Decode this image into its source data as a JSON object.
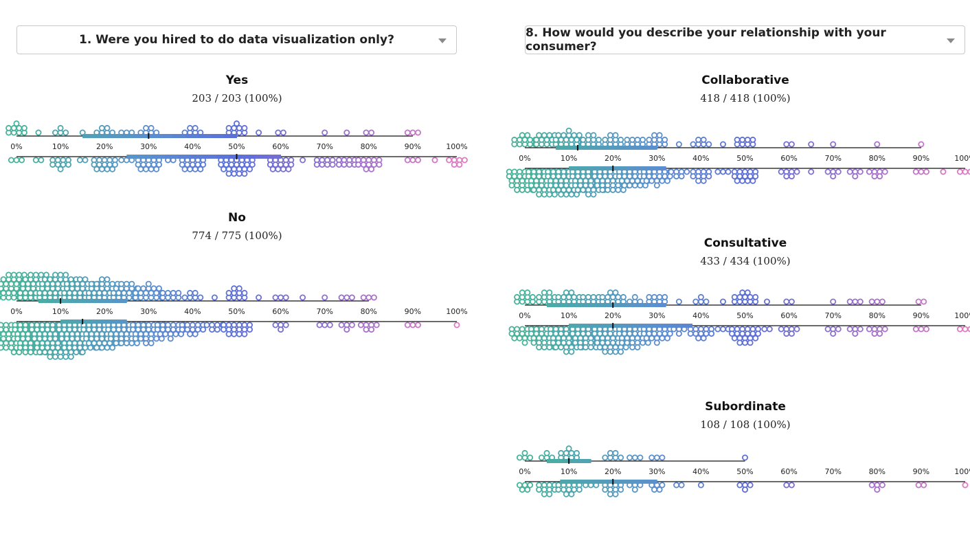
{
  "left": {
    "dropdown": {
      "label": "1. Were you hired to do data visualization only?",
      "icon": "chevron-down-icon"
    },
    "groups": [
      {
        "title": "Yes",
        "count": "203 / 203 (100%)"
      },
      {
        "title": "No",
        "count": "774 / 775 (100%)"
      }
    ]
  },
  "right": {
    "dropdown": {
      "label": "8. How would you describe your relationship with your consumer?",
      "icon": "chevron-down-icon"
    },
    "groups": [
      {
        "title": "Collaborative",
        "count": "418 / 418 (100%)"
      },
      {
        "title": "Consultative",
        "count": "433 / 434 (100%)"
      },
      {
        "title": "Subordinate",
        "count": "108 / 108 (100%)"
      }
    ]
  },
  "colors": {
    "start": "#46b39a",
    "mid": "#5b8fd0",
    "blue": "#5b6fd9",
    "purple": "#9b6fd0",
    "end": "#e079c2",
    "axis": "#111111",
    "dot_fill": "#ffffff"
  },
  "chart_data": [
    {
      "type": "scatter",
      "title": "Yes",
      "subtitle": "203 / 203 (100%)",
      "x_ticks": [
        "0%",
        "10%",
        "20%",
        "30%",
        "40%",
        "50%",
        "60%",
        "70%",
        "80%",
        "90%",
        "100%"
      ],
      "xlim": [
        0,
        100
      ],
      "top": {
        "x_range": [
          0,
          90
        ],
        "iqr": [
          15,
          50
        ],
        "median": 30,
        "bins": [
          [
            0,
            9
          ],
          [
            5,
            1
          ],
          [
            10,
            4
          ],
          [
            15,
            1
          ],
          [
            20,
            6
          ],
          [
            25,
            3
          ],
          [
            30,
            6
          ],
          [
            40,
            6
          ],
          [
            50,
            9
          ],
          [
            55,
            1
          ],
          [
            60,
            2
          ],
          [
            70,
            1
          ],
          [
            75,
            1
          ],
          [
            80,
            2
          ],
          [
            90,
            3
          ]
        ]
      },
      "bottom": {
        "x_range": [
          0,
          100
        ],
        "iqr": [
          25,
          60
        ],
        "median": 50,
        "bins": [
          [
            0,
            3
          ],
          [
            5,
            2
          ],
          [
            10,
            9
          ],
          [
            15,
            2
          ],
          [
            20,
            14
          ],
          [
            25,
            3
          ],
          [
            30,
            14
          ],
          [
            35,
            2
          ],
          [
            40,
            14
          ],
          [
            50,
            24
          ],
          [
            60,
            14
          ],
          [
            65,
            1
          ],
          [
            70,
            8
          ],
          [
            75,
            8
          ],
          [
            80,
            12
          ],
          [
            90,
            3
          ],
          [
            95,
            1
          ],
          [
            100,
            6
          ]
        ]
      }
    },
    {
      "type": "scatter",
      "title": "No",
      "subtitle": "774 / 775 (100%)",
      "x_ticks": [
        "0%",
        "10%",
        "20%",
        "30%",
        "40%",
        "50%",
        "60%",
        "70%",
        "80%",
        "90%",
        "100%"
      ],
      "xlim": [
        0,
        100
      ],
      "top": {
        "x_range": [
          0,
          80
        ],
        "iqr": [
          5,
          25
        ],
        "median": 10,
        "bins": [
          [
            0,
            40
          ],
          [
            5,
            40
          ],
          [
            10,
            44
          ],
          [
            15,
            32
          ],
          [
            20,
            28
          ],
          [
            25,
            20
          ],
          [
            30,
            18
          ],
          [
            35,
            8
          ],
          [
            40,
            6
          ],
          [
            45,
            1
          ],
          [
            50,
            10
          ],
          [
            55,
            1
          ],
          [
            60,
            3
          ],
          [
            65,
            1
          ],
          [
            70,
            1
          ],
          [
            75,
            3
          ],
          [
            80,
            3
          ]
        ]
      },
      "bottom": {
        "x_range": [
          0,
          100
        ],
        "iqr": [
          10,
          25
        ],
        "median": 15,
        "bins": [
          [
            0,
            50
          ],
          [
            5,
            60
          ],
          [
            10,
            80
          ],
          [
            15,
            55
          ],
          [
            20,
            45
          ],
          [
            25,
            35
          ],
          [
            30,
            28
          ],
          [
            35,
            18
          ],
          [
            40,
            12
          ],
          [
            45,
            6
          ],
          [
            50,
            16
          ],
          [
            60,
            4
          ],
          [
            70,
            3
          ],
          [
            75,
            4
          ],
          [
            80,
            6
          ],
          [
            90,
            3
          ],
          [
            100,
            1
          ]
        ]
      }
    },
    {
      "type": "scatter",
      "title": "Collaborative",
      "subtitle": "418 / 418 (100%)",
      "x_ticks": [
        "0%",
        "10%",
        "20%",
        "30%",
        "40%",
        "50%",
        "60%",
        "70%",
        "80%",
        "90%",
        "100%"
      ],
      "xlim": [
        0,
        100
      ],
      "top": {
        "x_range": [
          0,
          90
        ],
        "iqr": [
          7,
          30
        ],
        "median": 12,
        "bins": [
          [
            0,
            12
          ],
          [
            5,
            14
          ],
          [
            10,
            18
          ],
          [
            15,
            10
          ],
          [
            20,
            10
          ],
          [
            25,
            8
          ],
          [
            30,
            10
          ],
          [
            35,
            1
          ],
          [
            40,
            6
          ],
          [
            45,
            1
          ],
          [
            50,
            8
          ],
          [
            60,
            2
          ],
          [
            65,
            1
          ],
          [
            70,
            1
          ],
          [
            80,
            1
          ],
          [
            90,
            1
          ]
        ]
      },
      "bottom": {
        "x_range": [
          0,
          100
        ],
        "iqr": [
          10,
          32
        ],
        "median": 20,
        "bins": [
          [
            0,
            30
          ],
          [
            5,
            40
          ],
          [
            10,
            45
          ],
          [
            15,
            38
          ],
          [
            20,
            35
          ],
          [
            25,
            25
          ],
          [
            30,
            18
          ],
          [
            35,
            6
          ],
          [
            40,
            10
          ],
          [
            45,
            3
          ],
          [
            50,
            14
          ],
          [
            60,
            6
          ],
          [
            65,
            1
          ],
          [
            70,
            4
          ],
          [
            75,
            4
          ],
          [
            80,
            6
          ],
          [
            90,
            3
          ],
          [
            95,
            1
          ],
          [
            100,
            3
          ]
        ]
      }
    },
    {
      "type": "scatter",
      "title": "Consultative",
      "subtitle": "433 / 434 (100%)",
      "x_ticks": [
        "0%",
        "10%",
        "20%",
        "30%",
        "40%",
        "50%",
        "60%",
        "70%",
        "80%",
        "90%",
        "100%"
      ],
      "xlim": [
        0,
        100
      ],
      "top": {
        "x_range": [
          0,
          90
        ],
        "iqr": [
          5,
          32
        ],
        "median": 20,
        "bins": [
          [
            0,
            10
          ],
          [
            5,
            10
          ],
          [
            10,
            12
          ],
          [
            15,
            8
          ],
          [
            20,
            12
          ],
          [
            25,
            4
          ],
          [
            30,
            8
          ],
          [
            35,
            1
          ],
          [
            40,
            4
          ],
          [
            45,
            1
          ],
          [
            50,
            12
          ],
          [
            55,
            1
          ],
          [
            60,
            2
          ],
          [
            70,
            1
          ],
          [
            75,
            3
          ],
          [
            80,
            3
          ],
          [
            90,
            2
          ]
        ]
      },
      "bottom": {
        "x_range": [
          0,
          100
        ],
        "iqr": [
          10,
          38
        ],
        "median": 20,
        "bins": [
          [
            0,
            18
          ],
          [
            5,
            30
          ],
          [
            10,
            38
          ],
          [
            15,
            35
          ],
          [
            20,
            40
          ],
          [
            25,
            28
          ],
          [
            30,
            18
          ],
          [
            35,
            4
          ],
          [
            40,
            12
          ],
          [
            45,
            3
          ],
          [
            50,
            20
          ],
          [
            55,
            2
          ],
          [
            60,
            6
          ],
          [
            70,
            4
          ],
          [
            75,
            4
          ],
          [
            80,
            6
          ],
          [
            90,
            3
          ],
          [
            100,
            3
          ]
        ]
      }
    },
    {
      "type": "scatter",
      "title": "Subordinate",
      "subtitle": "108 / 108 (100%)",
      "x_ticks": [
        "0%",
        "10%",
        "20%",
        "30%",
        "40%",
        "50%",
        "60%",
        "70%",
        "80%",
        "90%",
        "100%"
      ],
      "xlim": [
        0,
        100
      ],
      "top": {
        "x_range": [
          0,
          50
        ],
        "iqr": [
          5,
          15
        ],
        "median": 10,
        "bins": [
          [
            0,
            4
          ],
          [
            5,
            4
          ],
          [
            10,
            9
          ],
          [
            20,
            6
          ],
          [
            25,
            3
          ],
          [
            30,
            3
          ],
          [
            50,
            1
          ]
        ]
      },
      "bottom": {
        "x_range": [
          0,
          100
        ],
        "iqr": [
          8,
          30
        ],
        "median": 20,
        "bins": [
          [
            0,
            5
          ],
          [
            5,
            10
          ],
          [
            10,
            12
          ],
          [
            15,
            3
          ],
          [
            20,
            10
          ],
          [
            25,
            4
          ],
          [
            30,
            5
          ],
          [
            35,
            2
          ],
          [
            40,
            1
          ],
          [
            50,
            4
          ],
          [
            60,
            2
          ],
          [
            80,
            4
          ],
          [
            90,
            2
          ],
          [
            100,
            1
          ]
        ]
      }
    }
  ]
}
